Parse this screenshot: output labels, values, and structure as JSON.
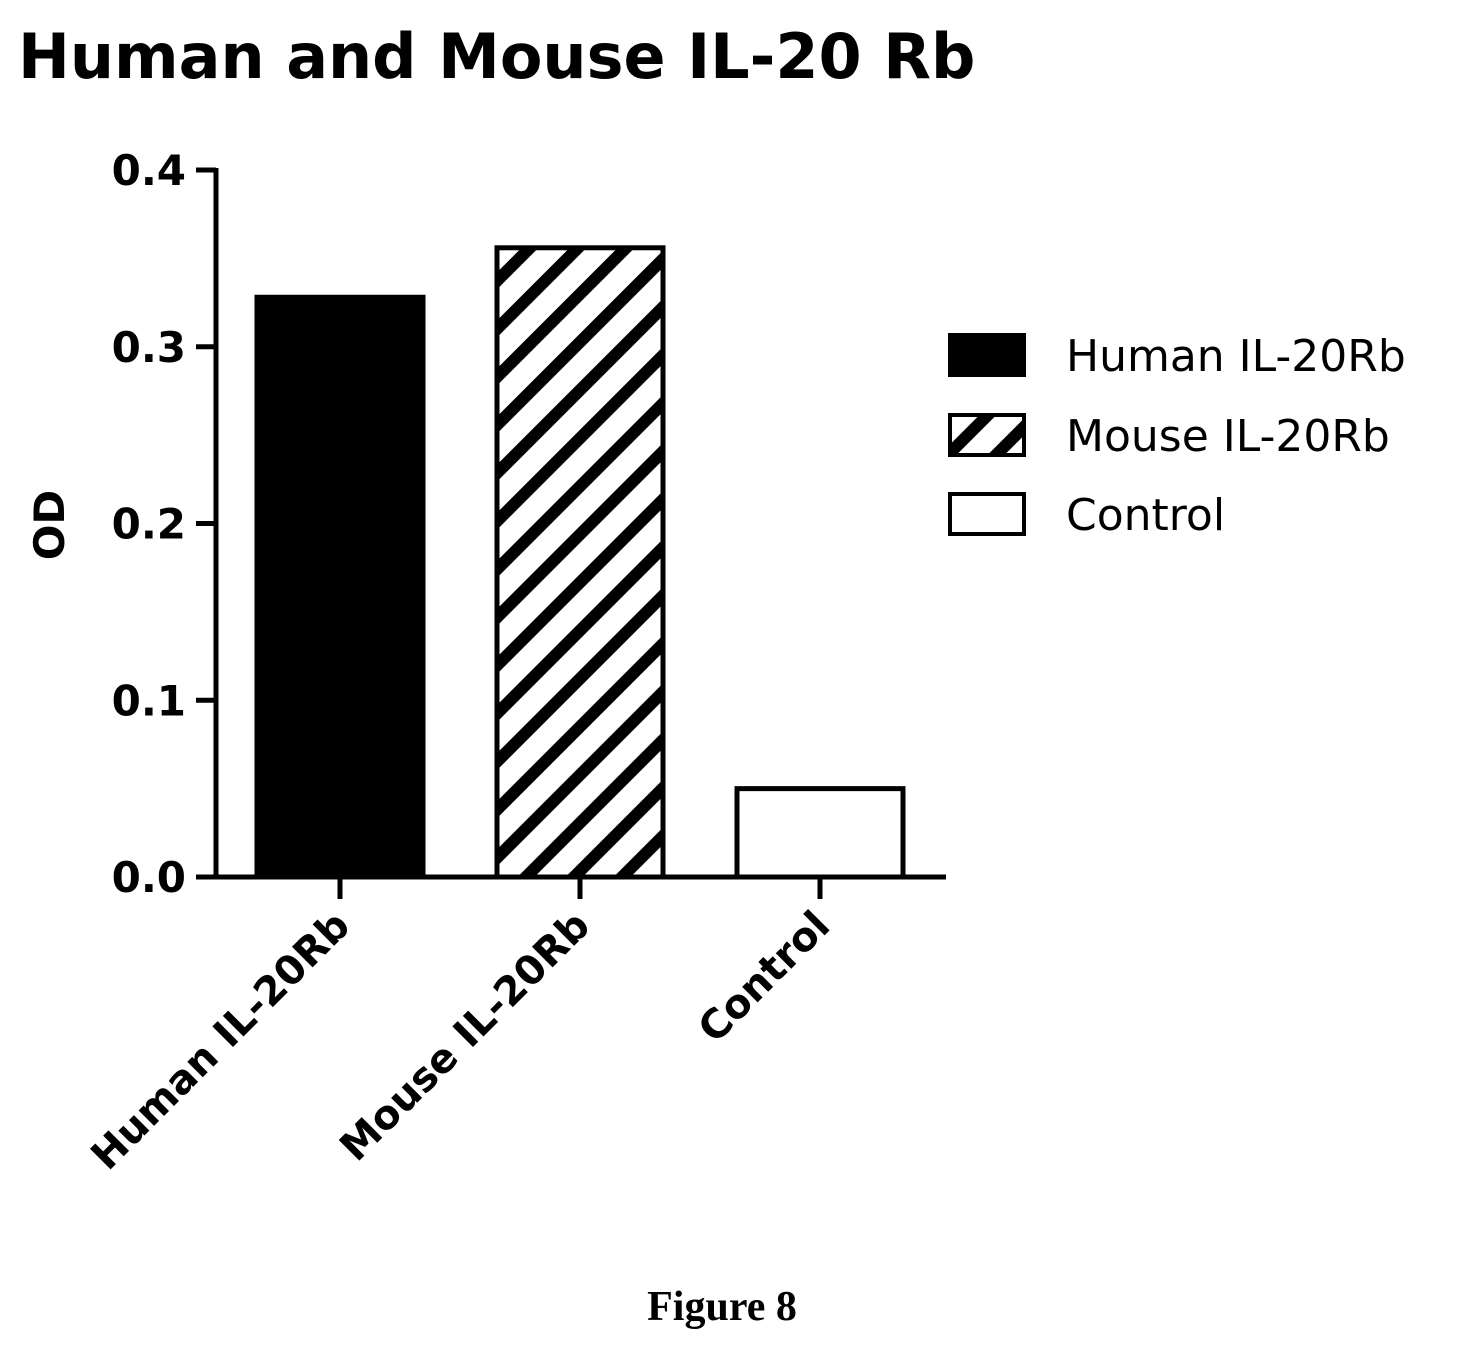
{
  "chart_data": {
    "type": "bar",
    "title": "Human and Mouse IL-20 Rb",
    "ylabel": "OD",
    "xlabel": "",
    "ylim": [
      0,
      0.4
    ],
    "yticks": [
      "0.0",
      "0.1",
      "0.2",
      "0.3",
      "0.4"
    ],
    "ytick_values": [
      0,
      0.1,
      0.2,
      0.3,
      0.4
    ],
    "categories": [
      "Human IL-20Rb",
      "Mouse IL-20Rb",
      "Control"
    ],
    "values": [
      0.328,
      0.356,
      0.05
    ],
    "fills": [
      "solid-black",
      "diagonal-hatch",
      "white"
    ],
    "legend": {
      "placement": "right",
      "entries": [
        "Human IL-20Rb",
        "Mouse IL-20Rb",
        "Control"
      ]
    },
    "grid": false
  },
  "caption": "Figure 8"
}
